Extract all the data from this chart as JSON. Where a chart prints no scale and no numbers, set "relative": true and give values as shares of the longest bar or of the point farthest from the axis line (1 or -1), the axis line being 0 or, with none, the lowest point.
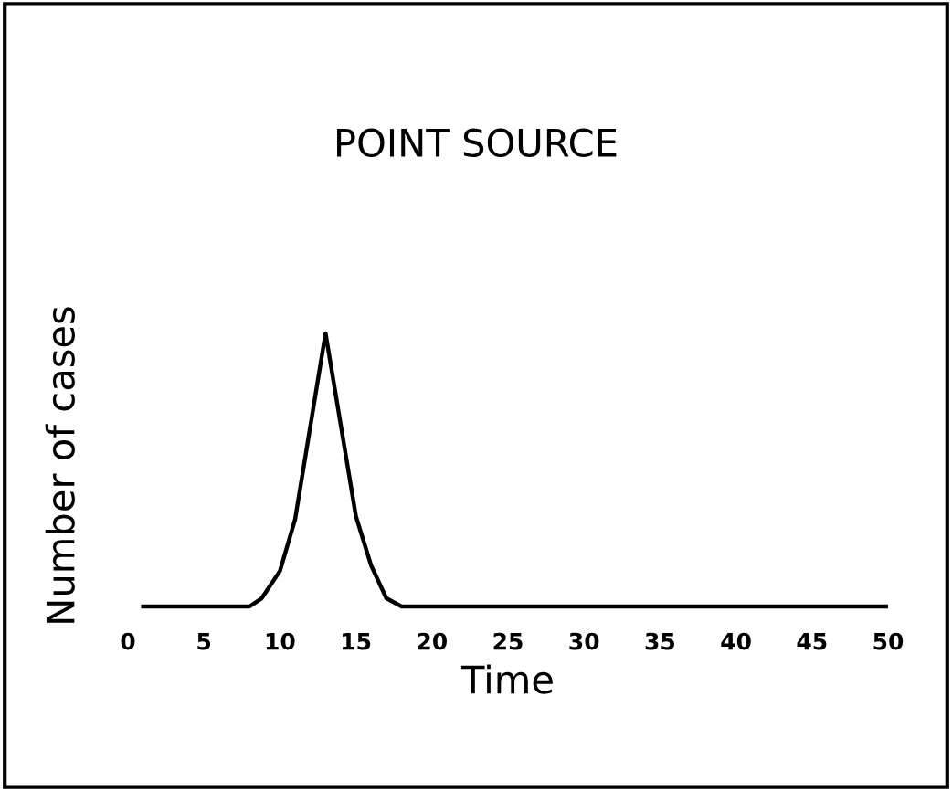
{
  "chart_data": {
    "type": "line",
    "title": "POINT SOURCE",
    "xlabel": "Time",
    "ylabel": "Number of cases",
    "relative": true,
    "x": [
      1,
      8,
      8.8,
      10,
      11,
      13,
      15,
      16,
      17,
      18,
      50
    ],
    "series": [
      {
        "color": "#000000",
        "values": [
          0,
          0,
          0.03,
          0.13,
          0.32,
          1,
          0.33,
          0.15,
          0.03,
          0,
          0
        ]
      }
    ],
    "xlim": [
      0,
      50
    ],
    "xticks": [
      0,
      5,
      10,
      15,
      20,
      25,
      30,
      35,
      40,
      45,
      50
    ],
    "grid": false
  }
}
